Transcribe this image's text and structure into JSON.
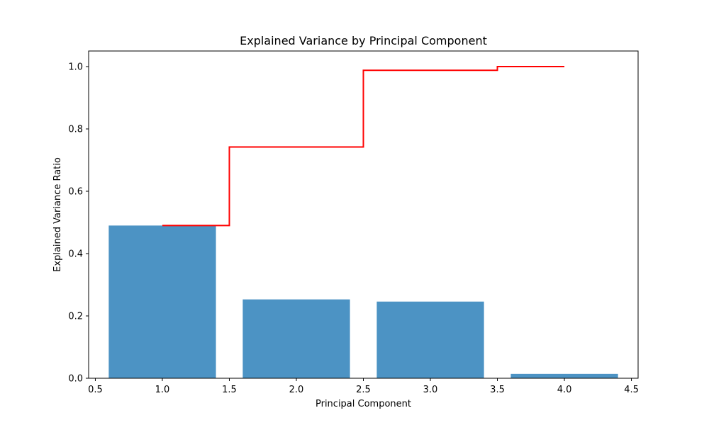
{
  "chart_data": {
    "type": "bar",
    "title": "Explained Variance by Principal Component",
    "xlabel": "Principal Component",
    "ylabel": "Explained Variance Ratio",
    "xlim": [
      0.45,
      4.55
    ],
    "ylim": [
      0.0,
      1.05
    ],
    "x": [
      1,
      2,
      3,
      4
    ],
    "bar_width": 0.8,
    "values": [
      0.49,
      0.253,
      0.246,
      0.014
    ],
    "bar_color": "#4c93c4",
    "step_series": {
      "type": "step",
      "where": "mid",
      "color": "#ff0000",
      "x": [
        1,
        2,
        3,
        4
      ],
      "values": [
        0.49,
        0.742,
        0.988,
        1.0
      ]
    },
    "x_ticks": [
      0.5,
      1.0,
      1.5,
      2.0,
      2.5,
      3.0,
      3.5,
      4.0,
      4.5
    ],
    "x_tick_labels": [
      "0.5",
      "1.0",
      "1.5",
      "2.0",
      "2.5",
      "3.0",
      "3.5",
      "4.0",
      "4.5"
    ],
    "y_ticks": [
      0.0,
      0.2,
      0.4,
      0.6,
      0.8,
      1.0
    ],
    "y_tick_labels": [
      "0.0",
      "0.2",
      "0.4",
      "0.6",
      "0.8",
      "1.0"
    ],
    "grid": false,
    "legend": "none"
  }
}
